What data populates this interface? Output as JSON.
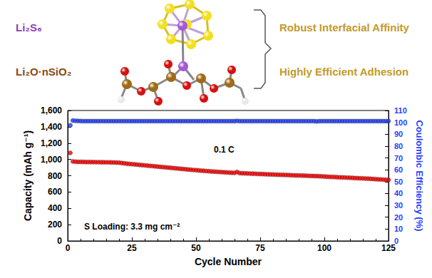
{
  "diagram": {
    "labels": [
      {
        "text": "Li₂S₆",
        "color": "#8b3fb5"
      },
      {
        "text": "Li₂O·nSiO₂",
        "color": "#8b4a14"
      }
    ],
    "claims": [
      {
        "text": "Robust Interfacial Affinity",
        "color": "#c39a2a"
      },
      {
        "text": "Highly Efficient Adhesion",
        "color": "#c39a2a"
      }
    ]
  },
  "chart_data": {
    "type": "scatter",
    "x_label": "Cycle Number",
    "y_label": "Capacity (mAh g⁻¹)",
    "y2_label": "Coulombic Efficiency (%)",
    "annotations": [
      "0.1 C",
      "S Loading: 3.3 mg cm⁻²"
    ],
    "xlim": [
      0,
      125
    ],
    "xticks": [
      0,
      25,
      50,
      75,
      100,
      125
    ],
    "ylim": [
      0,
      1600
    ],
    "yticks": [
      0,
      200,
      400,
      600,
      800,
      1000,
      1200,
      1400,
      1600
    ],
    "y2lim": [
      0,
      110
    ],
    "y2ticks": [
      0,
      10,
      20,
      30,
      40,
      50,
      60,
      70,
      80,
      90,
      100,
      110
    ],
    "grid": false,
    "x": [
      1,
      2,
      3,
      4,
      5,
      6,
      7,
      8,
      9,
      10,
      11,
      12,
      13,
      14,
      15,
      16,
      17,
      18,
      19,
      20,
      21,
      22,
      23,
      24,
      25,
      26,
      27,
      28,
      29,
      30,
      31,
      32,
      33,
      34,
      35,
      36,
      37,
      38,
      39,
      40,
      41,
      42,
      43,
      44,
      45,
      46,
      47,
      48,
      49,
      50,
      51,
      52,
      53,
      54,
      55,
      56,
      57,
      58,
      59,
      60,
      61,
      62,
      63,
      64,
      65,
      66,
      67,
      68,
      69,
      70,
      71,
      72,
      73,
      74,
      75,
      76,
      77,
      78,
      79,
      80,
      81,
      82,
      83,
      84,
      85,
      86,
      87,
      88,
      89,
      90,
      91,
      92,
      93,
      94,
      95,
      96,
      97,
      98,
      99,
      100,
      101,
      102,
      103,
      104,
      105,
      106,
      107,
      108,
      109,
      110,
      111,
      112,
      113,
      114,
      115,
      116,
      117,
      118,
      119,
      120,
      121,
      122,
      123,
      124,
      125
    ],
    "series": [
      {
        "color": "#ff0000",
        "marker": "circle",
        "axis": "y",
        "values": [
          1080,
          975,
          972,
          970,
          970,
          969,
          968,
          968,
          967,
          967,
          966,
          966,
          965,
          965,
          964,
          964,
          963,
          962,
          961,
          960,
          956,
          952,
          948,
          945,
          942,
          939,
          936,
          933,
          930,
          927,
          924,
          921,
          918,
          915,
          912,
          909,
          906,
          903,
          900,
          897,
          894,
          891,
          888,
          885,
          882,
          879,
          876,
          873,
          870,
          868,
          865,
          862,
          860,
          857,
          855,
          852,
          850,
          848,
          846,
          844,
          842,
          840,
          838,
          836,
          835,
          845,
          832,
          830,
          829,
          828,
          826,
          825,
          824,
          822,
          821,
          820,
          818,
          817,
          816,
          815,
          813,
          812,
          811,
          810,
          809,
          808,
          806,
          805,
          804,
          803,
          802,
          801,
          800,
          798,
          797,
          796,
          795,
          794,
          792,
          790,
          788,
          786,
          785,
          784,
          782,
          780,
          779,
          778,
          776,
          775,
          773,
          771,
          770,
          768,
          767,
          765,
          764,
          762,
          760,
          758,
          756,
          754,
          752,
          750,
          748
        ]
      },
      {
        "color": "#1f3fff",
        "marker": "circle",
        "axis": "y2",
        "values": [
          97.5,
          101.5,
          101.3,
          101.2,
          101.1,
          101,
          101,
          101,
          101,
          101,
          101,
          101,
          101,
          101,
          101,
          101,
          101,
          101,
          101,
          101,
          101,
          101,
          101,
          101,
          101,
          101,
          101,
          101,
          101,
          101,
          101,
          101,
          101,
          101,
          101,
          101,
          101,
          101,
          101,
          101,
          101,
          101,
          101,
          101,
          101,
          101,
          101,
          101,
          101,
          101,
          101,
          101,
          101,
          101,
          101,
          101,
          101,
          101,
          101,
          101,
          101,
          101,
          101,
          101,
          101,
          101.2,
          101,
          101,
          101,
          101,
          101,
          101,
          101,
          101,
          101,
          101,
          101,
          101,
          101,
          101,
          101,
          101,
          101,
          101,
          101,
          101,
          101,
          101,
          101,
          101,
          101,
          101,
          101,
          101,
          101,
          101,
          100.8,
          101,
          101,
          101,
          101,
          101,
          101,
          101,
          101,
          101,
          101,
          101,
          101,
          101,
          101,
          101,
          101,
          101,
          101,
          101,
          101,
          101,
          101,
          101,
          101,
          101,
          101,
          101,
          101
        ]
      }
    ]
  }
}
